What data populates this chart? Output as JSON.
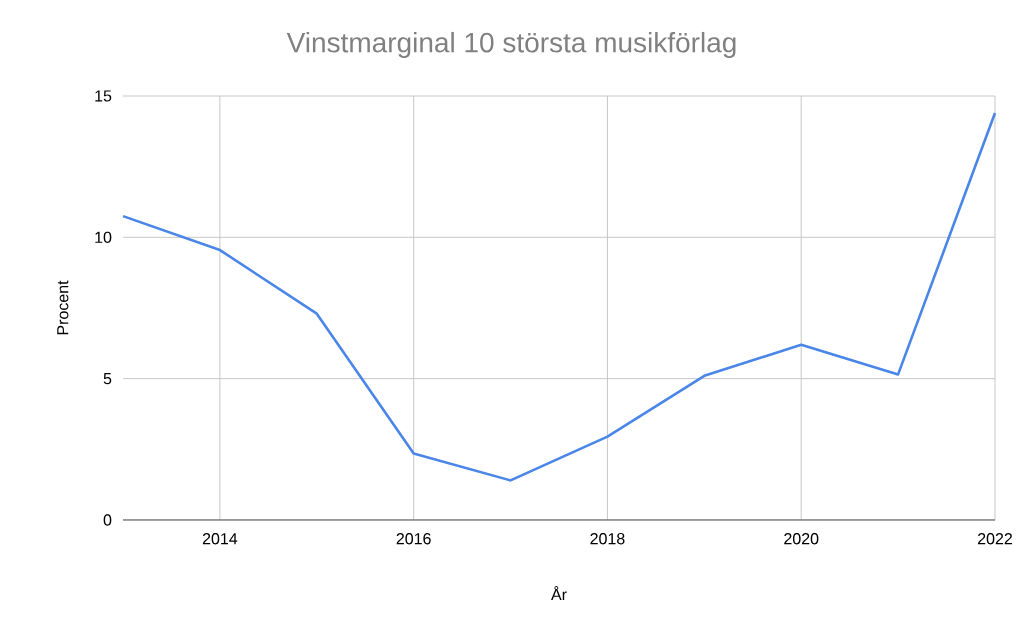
{
  "chart_data": {
    "type": "line",
    "title": "Vinstmarginal 10 största musikförlag",
    "xlabel": "År",
    "ylabel": "Procent",
    "x": [
      2013,
      2014,
      2015,
      2016,
      2017,
      2018,
      2019,
      2020,
      2021,
      2022
    ],
    "series": [
      {
        "color": "#4a86e8",
        "values": [
          10.75,
          9.55,
          7.3,
          2.35,
          1.4,
          2.95,
          5.1,
          6.2,
          5.15,
          14.4
        ]
      }
    ],
    "xlim": [
      2013,
      2022
    ],
    "ylim": [
      0,
      15
    ],
    "xticks": [
      2014,
      2016,
      2018,
      2020,
      2022
    ],
    "yticks": [
      0,
      5,
      10,
      15
    ],
    "grid": true,
    "marker": "none",
    "line_style": "solid"
  }
}
